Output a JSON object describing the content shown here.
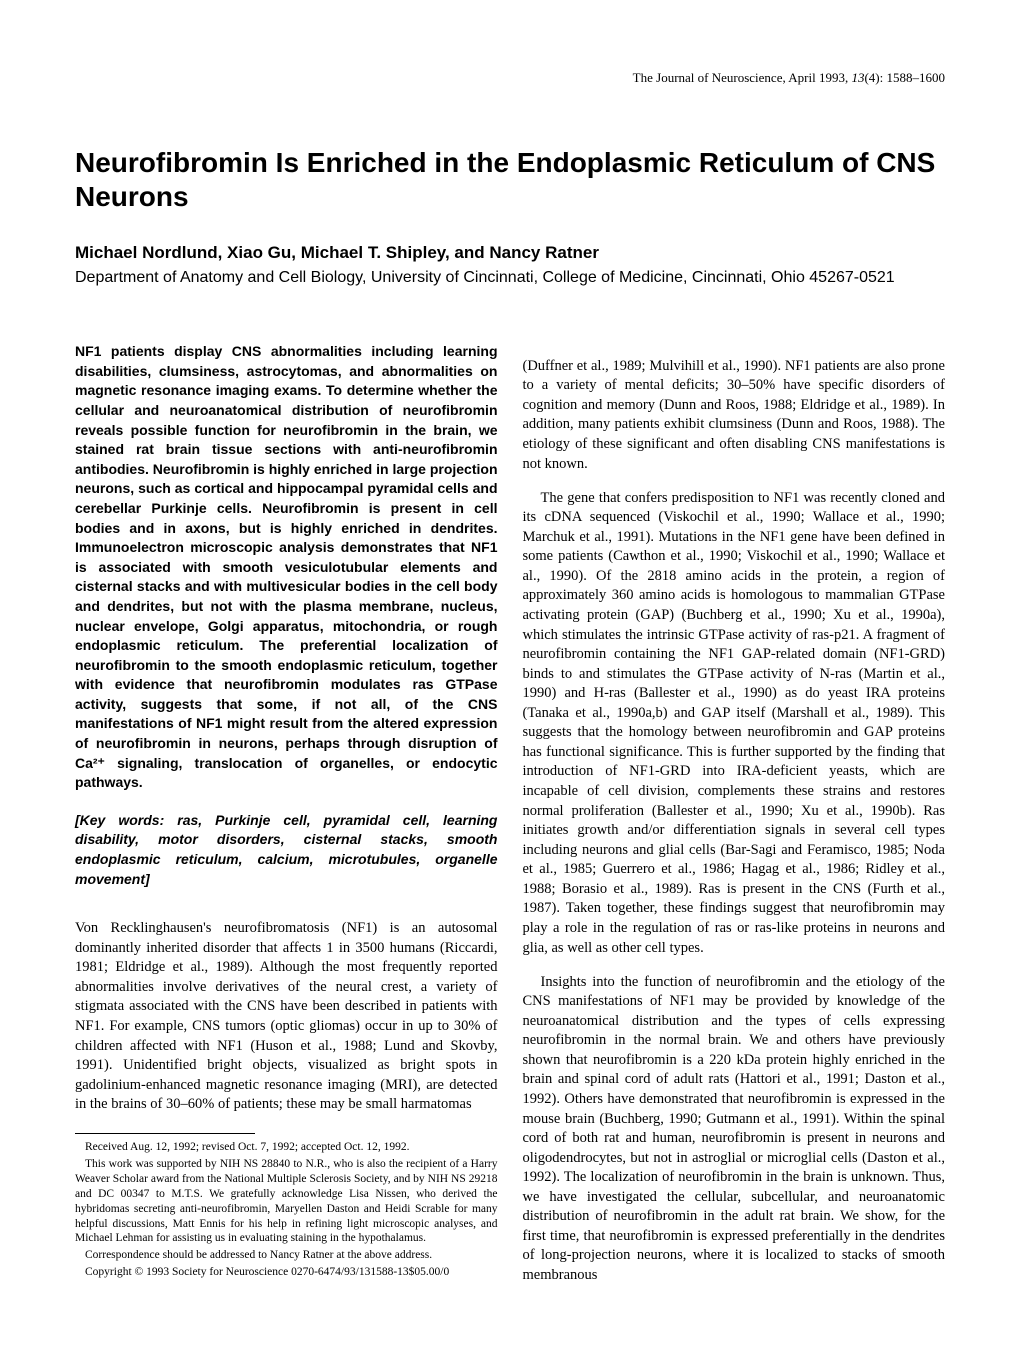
{
  "running_header": {
    "journal": "The Journal of Neuroscience,",
    "issue": " April 1993, ",
    "volume_italic": "13",
    "pages": "(4): 1588–1600"
  },
  "title": "Neurofibromin Is Enriched in the Endoplasmic Reticulum of CNS Neurons",
  "authors": "Michael Nordlund, Xiao Gu, Michael T. Shipley, and Nancy Ratner",
  "affiliation": "Department of Anatomy and Cell Biology, University of Cincinnati, College of Medicine, Cincinnati, Ohio 45267-0521",
  "abstract": "NF1 patients display CNS abnormalities including learning disabilities, clumsiness, astrocytomas, and abnormalities on magnetic resonance imaging exams. To determine whether the cellular and neuroanatomical distribution of neurofibromin reveals possible function for neurofibromin in the brain, we stained rat brain tissue sections with anti-neurofibromin antibodies. Neurofibromin is highly enriched in large projection neurons, such as cortical and hippocampal pyramidal cells and cerebellar Purkinje cells. Neurofibromin is present in cell bodies and in axons, but is highly enriched in dendrites. Immunoelectron microscopic analysis demonstrates that NF1 is associated with smooth vesiculotubular elements and cisternal stacks and with multivesicular bodies in the cell body and dendrites, but not with the plasma membrane, nucleus, nuclear envelope, Golgi apparatus, mitochondria, or rough endoplasmic reticulum. The preferential localization of neurofibromin to the smooth endoplasmic reticulum, together with evidence that neurofibromin modulates ras GTPase activity, suggests that some, if not all, of the CNS manifestations of NF1 might result from the altered expression of neurofibromin in neurons, perhaps through disruption of Ca²⁺ signaling, translocation of organelles, or endocytic pathways.",
  "keywords": "[Key words: ras, Purkinje cell, pyramidal cell, learning disability, motor disorders, cisternal stacks, smooth endoplasmic reticulum, calcium, microtubules, organelle movement]",
  "left_body": "Von Recklinghausen's neurofibromatosis (NF1) is an autosomal dominantly inherited disorder that affects 1 in 3500 humans (Riccardi, 1981; Eldridge et al., 1989). Although the most frequently reported abnormalities involve derivatives of the neural crest, a variety of stigmata associated with the CNS have been described in patients with NF1. For example, CNS tumors (optic gliomas) occur in up to 30% of children affected with NF1 (Huson et al., 1988; Lund and Skovby, 1991). Unidentified bright objects, visualized as bright spots in gadolinium-enhanced magnetic resonance imaging (MRI), are detected in the brains of 30–60% of patients; these may be small harmatomas",
  "right_body_p1": "(Duffner et al., 1989; Mulvihill et al., 1990). NF1 patients are also prone to a variety of mental deficits; 30–50% have specific disorders of cognition and memory (Dunn and Roos, 1988; Eldridge et al., 1989). In addition, many patients exhibit clumsiness (Dunn and Roos, 1988). The etiology of these significant and often disabling CNS manifestations is not known.",
  "right_body_p2": "The gene that confers predisposition to NF1 was recently cloned and its cDNA sequenced (Viskochil et al., 1990; Wallace et al., 1990; Marchuk et al., 1991). Mutations in the NF1 gene have been defined in some patients (Cawthon et al., 1990; Viskochil et al., 1990; Wallace et al., 1990). Of the 2818 amino acids in the protein, a region of approximately 360 amino acids is homologous to mammalian GTPase activating protein (GAP) (Buchberg et al., 1990; Xu et al., 1990a), which stimulates the intrinsic GTPase activity of ras-p21. A fragment of neurofibromin containing the NF1 GAP-related domain (NF1-GRD) binds to and stimulates the GTPase activity of N-ras (Martin et al., 1990) and H-ras (Ballester et al., 1990) as do yeast IRA proteins (Tanaka et al., 1990a,b) and GAP itself (Marshall et al., 1989). This suggests that the homology between neurofibromin and GAP proteins has functional significance. This is further supported by the finding that introduction of NF1-GRD into IRA-deficient yeasts, which are incapable of cell division, complements these strains and restores normal proliferation (Ballester et al., 1990; Xu et al., 1990b). Ras initiates growth and/or differentiation signals in several cell types including neurons and glial cells (Bar-Sagi and Feramisco, 1985; Noda et al., 1985; Guerrero et al., 1986; Hagag et al., 1986; Ridley et al., 1988; Borasio et al., 1989). Ras is present in the CNS (Furth et al., 1987). Taken together, these findings suggest that neurofibromin may play a role in the regulation of ras or ras-like proteins in neurons and glia, as well as other cell types.",
  "right_body_p3": "Insights into the function of neurofibromin and the etiology of the CNS manifestations of NF1 may be provided by knowledge of the neuroanatomical distribution and the types of cells expressing neurofibromin in the normal brain. We and others have previously shown that neurofibromin is a 220 kDa protein highly enriched in the brain and spinal cord of adult rats (Hattori et al., 1991; Daston et al., 1992). Others have demonstrated that neurofibromin is expressed in the mouse brain (Buchberg, 1990; Gutmann et al., 1991). Within the spinal cord of both rat and human, neurofibromin is present in neurons and oligodendrocytes, but not in astroglial or microglial cells (Daston et al., 1992). The localization of neurofibromin in the brain is unknown. Thus, we have investigated the cellular, subcellular, and neuroanatomic distribution of neurofibromin in the adult rat brain. We show, for the first time, that neurofibromin is expressed preferentially in the dendrites of long-projection neurons, where it is localized to stacks of smooth membranous",
  "footnotes": {
    "received": "Received Aug. 12, 1992; revised Oct. 7, 1992; accepted Oct. 12, 1992.",
    "support": "This work was supported by NIH NS 28840 to N.R., who is also the recipient of a Harry Weaver Scholar award from the National Multiple Sclerosis Society, and by NIH NS 29218 and DC 00347 to M.T.S. We gratefully acknowledge Lisa Nissen, who derived the hybridomas secreting anti-neurofibromin, Maryellen Daston and Heidi Scrable for many helpful discussions, Matt Ennis for his help in refining light microscopic analyses, and Michael Lehman for assisting us in evaluating staining in the hypothalamus.",
    "correspondence": "Correspondence should be addressed to Nancy Ratner at the above address.",
    "copyright": "Copyright © 1993 Society for Neuroscience 0270-6474/93/131588-13$05.00/0"
  }
}
